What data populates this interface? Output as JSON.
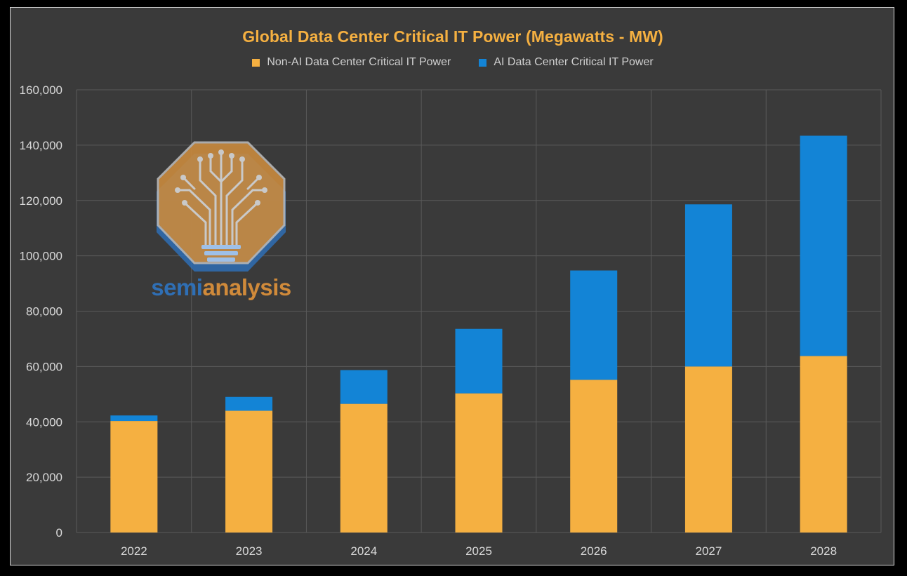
{
  "chart_data": {
    "type": "bar",
    "stacked": true,
    "title": "Global Data Center Critical IT Power (Megawatts - MW)",
    "categories": [
      "2022",
      "2023",
      "2024",
      "2025",
      "2026",
      "2027",
      "2028"
    ],
    "series": [
      {
        "name": "Non-AI Data Center Critical IT Power",
        "color": "#f5b041",
        "values": [
          40300,
          44000,
          46500,
          50300,
          55200,
          60000,
          63800
        ]
      },
      {
        "name": "AI Data Center Critical IT Power",
        "color": "#1384d6",
        "values": [
          2000,
          5000,
          12200,
          23300,
          39500,
          58600,
          79600
        ]
      }
    ],
    "ylim": [
      0,
      160000
    ],
    "yticks": [
      0,
      20000,
      40000,
      60000,
      80000,
      100000,
      120000,
      140000,
      160000
    ],
    "ytick_labels": [
      "0",
      "20,000",
      "40,000",
      "60,000",
      "80,000",
      "100,000",
      "120,000",
      "140,000",
      "160,000"
    ],
    "xlabel": "",
    "ylabel": "",
    "grid": true,
    "legend_position": "top-center"
  },
  "watermark": {
    "text_part1": "semi",
    "text_part2": "analysis",
    "color_part1": "#2f6fb5",
    "color_part2": "#d08a3a",
    "icon": "circuit-tree-lightbulb-icon"
  },
  "colors": {
    "background": "#3a3a3a",
    "gridline": "#5a5a5a",
    "title": "#f5b041"
  }
}
